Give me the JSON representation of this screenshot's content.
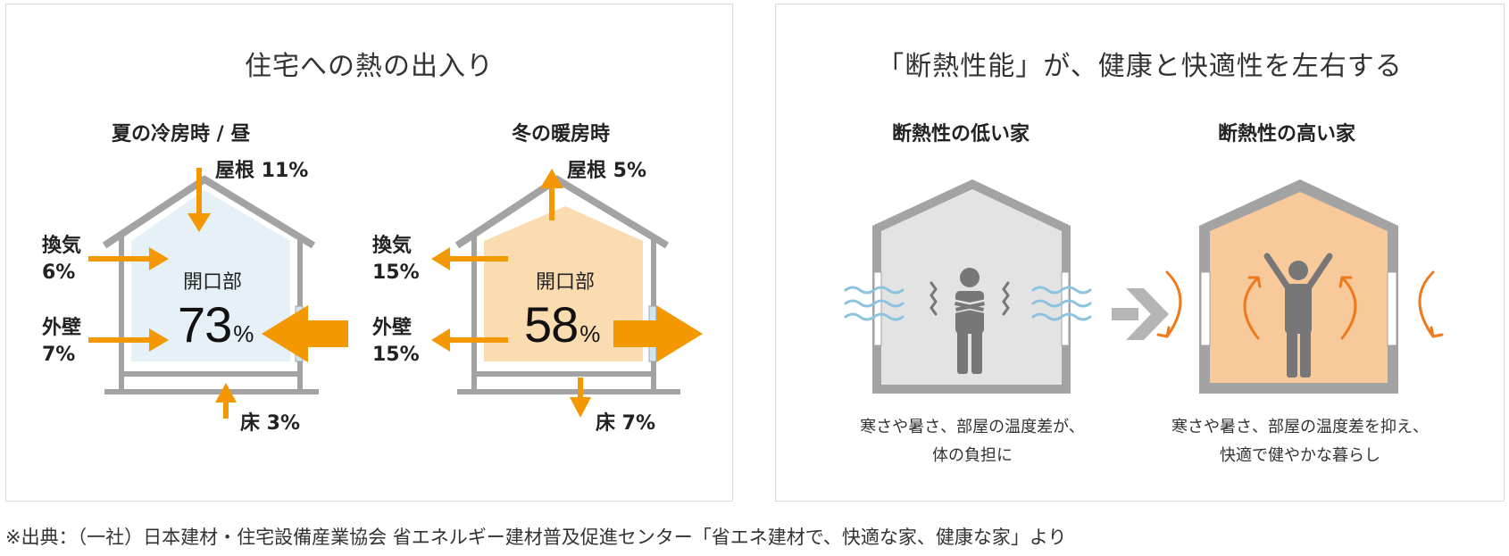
{
  "left_panel": {
    "title": "住宅への熱の出入り",
    "summer": {
      "heading": "夏の冷房時 / 昼",
      "roof": "屋根 11%",
      "vent_label": "換気",
      "vent_value": "6%",
      "wall_label": "外壁",
      "wall_value": "7%",
      "opening_label": "開口部",
      "opening_value": "73",
      "opening_unit": "%",
      "floor": "床 3%"
    },
    "winter": {
      "heading": "冬の暖房時",
      "roof": "屋根 5%",
      "vent_label": "換気",
      "vent_value": "15%",
      "wall_label": "外壁",
      "wall_value": "15%",
      "opening_label": "開口部",
      "opening_value": "58",
      "opening_unit": "%",
      "floor": "床 7%"
    }
  },
  "right_panel": {
    "title": "「断熱性能」が、健康と快適性を左右する",
    "low": {
      "heading": "断熱性の低い家",
      "caption_line1": "寒さや暑さ、部屋の温度差が、",
      "caption_line2": "体の負担に"
    },
    "high": {
      "heading": "断熱性の高い家",
      "caption_line1": "寒さや暑さ、部屋の温度差を抑え、",
      "caption_line2": "快適で健やかな暮らし"
    }
  },
  "footnote": "※出典：（一社）日本建材・住宅設備産業協会 省エネルギー建材普及促進センター「省エネ建材で、快適な家、健康な家」より",
  "colors": {
    "arrow_orange": "#f39800",
    "house_gray": "#a3a3a3",
    "summer_fill": "#e6f1f7",
    "winter_fill": "#fbdcb1",
    "low_house_fill": "#e3e3e3",
    "high_house_fill": "#f8c99a",
    "flow_orange": "#ee7a1c",
    "wind_blue": "#8cc4e0",
    "figure_gray": "#777777"
  },
  "icons": {
    "wind": "wind-lines-icon",
    "shiver": "shiver-lines-icon",
    "circulation": "air-circulation-icon",
    "person_cold": "person-shivering-icon",
    "person_happy": "person-arms-raised-icon",
    "transition": "chevron-right-icon"
  }
}
